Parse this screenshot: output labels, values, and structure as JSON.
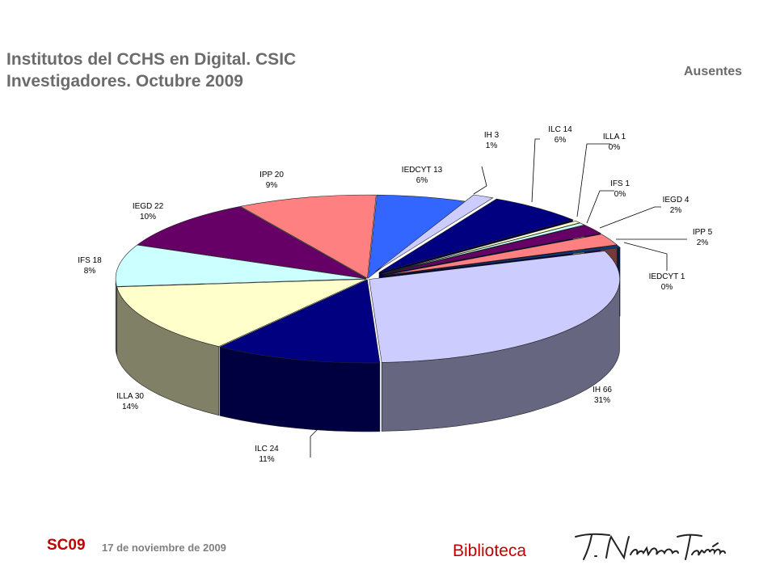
{
  "header": {
    "title_line1": "Institutos del CCHS en Digital. CSIC",
    "title_line2": "Investigadores. Octubre 2009",
    "group_right": "Ausentes"
  },
  "footer": {
    "code": "SC09",
    "date": "17 de noviembre de 2009",
    "department": "Biblioteca",
    "signature": "T. Navarro Tomás"
  },
  "chart_data": {
    "type": "pie",
    "title": "Institutos del CCHS en Digital. CSIC Investigadores. Octubre 2009",
    "legend": "none",
    "slices": [
      {
        "label": "IEDCYT 13",
        "value": 13,
        "percent": "6%",
        "group": "",
        "color": "#3366ff"
      },
      {
        "label": "IH 3",
        "value": 3,
        "percent": "1%",
        "group": "Ausentes",
        "color": "#ccccff"
      },
      {
        "label": "ILC 14",
        "value": 14,
        "percent": "6%",
        "group": "Ausentes",
        "color": "#000080"
      },
      {
        "label": "ILLA 1",
        "value": 1,
        "percent": "0%",
        "group": "Ausentes",
        "color": "#ffffcc"
      },
      {
        "label": "IFS 1",
        "value": 1,
        "percent": "0%",
        "group": "Ausentes",
        "color": "#ccffff"
      },
      {
        "label": "IEGD 4",
        "value": 4,
        "percent": "2%",
        "group": "Ausentes",
        "color": "#660066"
      },
      {
        "label": "IPP 5",
        "value": 5,
        "percent": "2%",
        "group": "Ausentes",
        "color": "#ff8080"
      },
      {
        "label": "IEDCYT 1",
        "value": 1,
        "percent": "0%",
        "group": "Ausentes",
        "color": "#0a3a80"
      },
      {
        "label": "IH 66",
        "value": 66,
        "percent": "31%",
        "group": "",
        "color": "#ccccff"
      },
      {
        "label": "ILC 24",
        "value": 24,
        "percent": "11%",
        "group": "",
        "color": "#000080"
      },
      {
        "label": "ILLA 30",
        "value": 30,
        "percent": "14%",
        "group": "",
        "color": "#ffffcc"
      },
      {
        "label": "IFS 18",
        "value": 18,
        "percent": "8%",
        "group": "",
        "color": "#ccffff"
      },
      {
        "label": "IEGD 22",
        "value": 22,
        "percent": "10%",
        "group": "",
        "color": "#660066"
      },
      {
        "label": "IPP 20",
        "value": 20,
        "percent": "9%",
        "group": "",
        "color": "#ff8080"
      }
    ]
  }
}
